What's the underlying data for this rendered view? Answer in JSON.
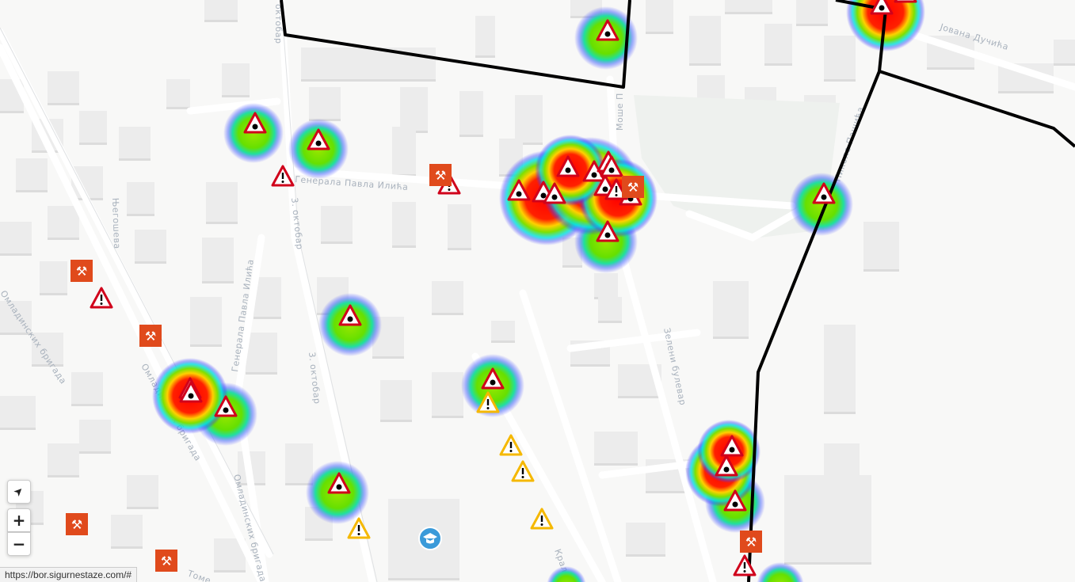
{
  "streets": [
    {
      "id": "genpavla",
      "label": "Генерала Павла Илића"
    },
    {
      "id": "genpavla2",
      "label": "Генерала Павла Илића"
    },
    {
      "id": "oktobar1",
      "label": "3. октобар"
    },
    {
      "id": "oktobar2",
      "label": "3. октобар"
    },
    {
      "id": "omlad1",
      "label": "Омладинских бригада"
    },
    {
      "id": "omlad2",
      "label": "Омладинских бригада"
    },
    {
      "id": "omlad3",
      "label": "Омладинских бригада"
    },
    {
      "id": "njegoseva",
      "label": "Његошева"
    },
    {
      "id": "zeleni",
      "label": "Зелени булевар"
    },
    {
      "id": "ducica",
      "label": "Јована Дучића"
    },
    {
      "id": "mose",
      "label": "Моше П"
    },
    {
      "id": "pasica",
      "label": "Николе Пашића"
    },
    {
      "id": "kralja",
      "label": "Краља Б"
    },
    {
      "id": "tome",
      "label": "Томе"
    },
    {
      "id": "oktobar0",
      "label": "октобар"
    }
  ],
  "marker_types": {
    "danger": "red-triangle-dot-icon",
    "warning": "red-triangle-exclamation-icon",
    "caution": "yellow-triangle-exclamation-icon",
    "roadwork": "hammer-wrench-icon",
    "school": "graduation-cap-icon"
  },
  "colors": {
    "route": "#000000",
    "danger": "#d0021b",
    "caution": "#f5b800",
    "roadwork": "#e04a1c",
    "school": "#3a9ad9"
  },
  "controls": {
    "locate": "➤",
    "zoom_in": "+",
    "zoom_out": "−"
  },
  "status_url": "https://bor.sigurnestaze.com/#"
}
